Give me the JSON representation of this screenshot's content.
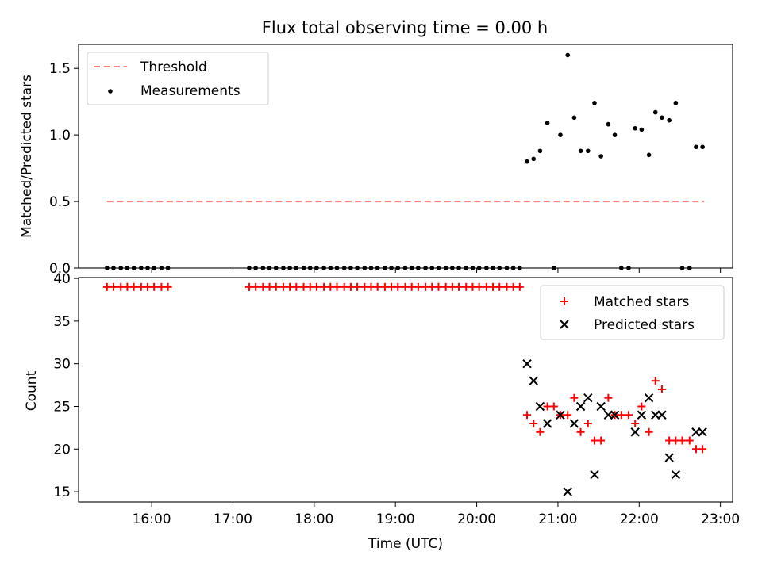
{
  "title": "Flux total observing time = 0.00 h",
  "chart_data": [
    {
      "type": "scatter",
      "panel": "top",
      "ylabel": "Matched/Predicted stars",
      "xlim": [
        15.1,
        23.15
      ],
      "ylim": [
        0,
        1.68
      ],
      "yticks": [
        0.0,
        0.5,
        1.0,
        1.5
      ],
      "ytick_labels": [
        "0.0",
        "0.5",
        "1.0",
        "1.5"
      ],
      "legend": "upper left",
      "threshold": {
        "name": "Threshold",
        "value": 0.5,
        "x": [
          15.45,
          22.8
        ],
        "color": "#ff8080"
      },
      "measurements": {
        "name": "Measurements",
        "color": "#000000",
        "x": [
          15.45,
          15.53,
          15.62,
          15.7,
          15.78,
          15.87,
          15.95,
          16.03,
          16.12,
          16.2,
          17.2,
          17.28,
          17.37,
          17.45,
          17.53,
          17.62,
          17.7,
          17.78,
          17.87,
          17.95,
          18.03,
          18.12,
          18.2,
          18.28,
          18.37,
          18.45,
          18.53,
          18.62,
          18.7,
          18.78,
          18.87,
          18.95,
          19.03,
          19.12,
          19.2,
          19.28,
          19.37,
          19.45,
          19.53,
          19.62,
          19.7,
          19.78,
          19.87,
          19.95,
          20.03,
          20.12,
          20.2,
          20.28,
          20.37,
          20.45,
          20.53,
          20.62,
          20.7,
          20.78,
          20.87,
          20.95,
          21.03,
          21.12,
          21.2,
          21.28,
          21.37,
          21.45,
          21.53,
          21.62,
          21.7,
          21.78,
          21.87,
          21.95,
          22.03,
          22.12,
          22.2,
          22.28,
          22.37,
          22.45,
          22.53,
          22.62,
          22.7,
          22.78
        ],
        "y": [
          0,
          0,
          0,
          0,
          0,
          0,
          0,
          0,
          0,
          0,
          0,
          0,
          0,
          0,
          0,
          0,
          0,
          0,
          0,
          0,
          0,
          0,
          0,
          0,
          0,
          0,
          0,
          0,
          0,
          0,
          0,
          0,
          0,
          0,
          0,
          0,
          0,
          0,
          0,
          0,
          0,
          0,
          0,
          0,
          0,
          0,
          0,
          0,
          0,
          0,
          0,
          0.8,
          0.82,
          0.88,
          1.09,
          0.0,
          1.0,
          1.6,
          1.13,
          0.88,
          0.88,
          1.24,
          0.84,
          1.08,
          1.0,
          0.0,
          0.0,
          1.05,
          1.04,
          0.85,
          1.17,
          1.13,
          1.11,
          1.24,
          0.0,
          0.0,
          0.91,
          0.91
        ]
      }
    },
    {
      "type": "scatter",
      "panel": "bottom",
      "xlabel": "Time (UTC)",
      "ylabel": "Count",
      "xlim": [
        15.1,
        23.15
      ],
      "ylim": [
        13.8,
        40.1
      ],
      "xticks": [
        16,
        17,
        18,
        19,
        20,
        21,
        22,
        23
      ],
      "xtick_labels": [
        "16:00",
        "17:00",
        "18:00",
        "19:00",
        "20:00",
        "21:00",
        "22:00",
        "23:00"
      ],
      "yticks": [
        15,
        20,
        25,
        30,
        35,
        40
      ],
      "ytick_labels": [
        "15",
        "20",
        "25",
        "30",
        "35",
        "40"
      ],
      "legend": "upper right",
      "series": [
        {
          "name": "Matched stars",
          "marker": "plus",
          "color": "#ff0000",
          "x": [
            15.45,
            15.53,
            15.62,
            15.7,
            15.78,
            15.87,
            15.95,
            16.03,
            16.12,
            16.2,
            17.2,
            17.28,
            17.37,
            17.45,
            17.53,
            17.62,
            17.7,
            17.78,
            17.87,
            17.95,
            18.03,
            18.12,
            18.2,
            18.28,
            18.37,
            18.45,
            18.53,
            18.62,
            18.7,
            18.78,
            18.87,
            18.95,
            19.03,
            19.12,
            19.2,
            19.28,
            19.37,
            19.45,
            19.53,
            19.62,
            19.7,
            19.78,
            19.87,
            19.95,
            20.03,
            20.12,
            20.2,
            20.28,
            20.37,
            20.45,
            20.53,
            20.62,
            20.7,
            20.78,
            20.87,
            20.95,
            21.03,
            21.12,
            21.2,
            21.28,
            21.37,
            21.45,
            21.53,
            21.62,
            21.7,
            21.78,
            21.87,
            21.95,
            22.03,
            22.12,
            22.2,
            22.28,
            22.37,
            22.45,
            22.53,
            22.62,
            22.7,
            22.78
          ],
          "y": [
            39,
            39,
            39,
            39,
            39,
            39,
            39,
            39,
            39,
            39,
            39,
            39,
            39,
            39,
            39,
            39,
            39,
            39,
            39,
            39,
            39,
            39,
            39,
            39,
            39,
            39,
            39,
            39,
            39,
            39,
            39,
            39,
            39,
            39,
            39,
            39,
            39,
            39,
            39,
            39,
            39,
            39,
            39,
            39,
            39,
            39,
            39,
            39,
            39,
            39,
            39,
            24,
            23,
            22,
            25,
            25,
            24,
            24,
            26,
            22,
            23,
            21,
            21,
            26,
            24,
            24,
            24,
            23,
            25,
            22,
            28,
            27,
            21,
            21,
            21,
            21,
            20,
            20
          ]
        },
        {
          "name": "Predicted stars",
          "marker": "x",
          "color": "#000000",
          "x": [
            20.62,
            20.7,
            20.78,
            20.87,
            21.03,
            21.12,
            21.2,
            21.28,
            21.37,
            21.45,
            21.53,
            21.62,
            21.7,
            21.95,
            22.03,
            22.12,
            22.2,
            22.28,
            22.37,
            22.45,
            22.7,
            22.78
          ],
          "y": [
            30,
            28,
            25,
            23,
            24,
            15,
            23,
            25,
            26,
            17,
            25,
            24,
            24,
            22,
            24,
            26,
            24,
            24,
            19,
            17,
            22,
            22
          ]
        }
      ]
    }
  ]
}
